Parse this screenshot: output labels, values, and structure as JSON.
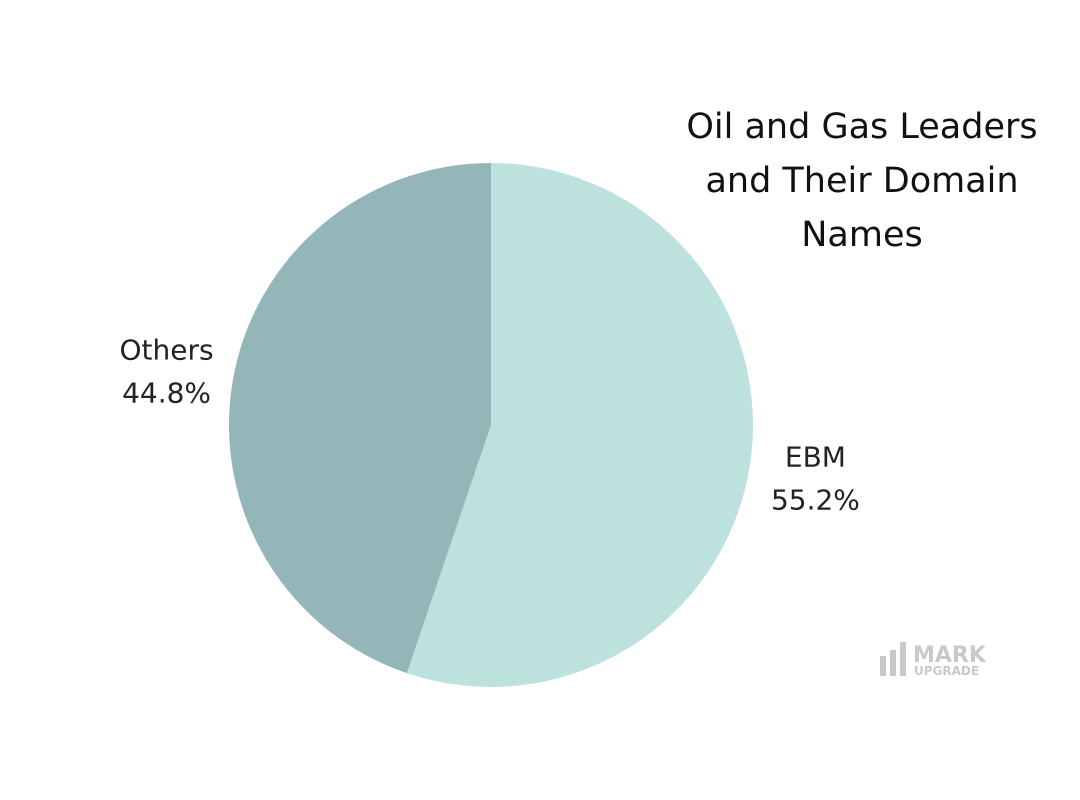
{
  "chart_data": {
    "type": "pie",
    "title": "Oil and Gas Leaders and Their Domain Names",
    "categories": [
      "EBM",
      "Others"
    ],
    "values": [
      55.2,
      44.8
    ],
    "value_labels": [
      "55.2%",
      "44.8%"
    ],
    "colors": [
      "#bde2de",
      "#95b6b9"
    ]
  },
  "logo": {
    "line1": "MARK",
    "line2": "UPGRADE"
  }
}
